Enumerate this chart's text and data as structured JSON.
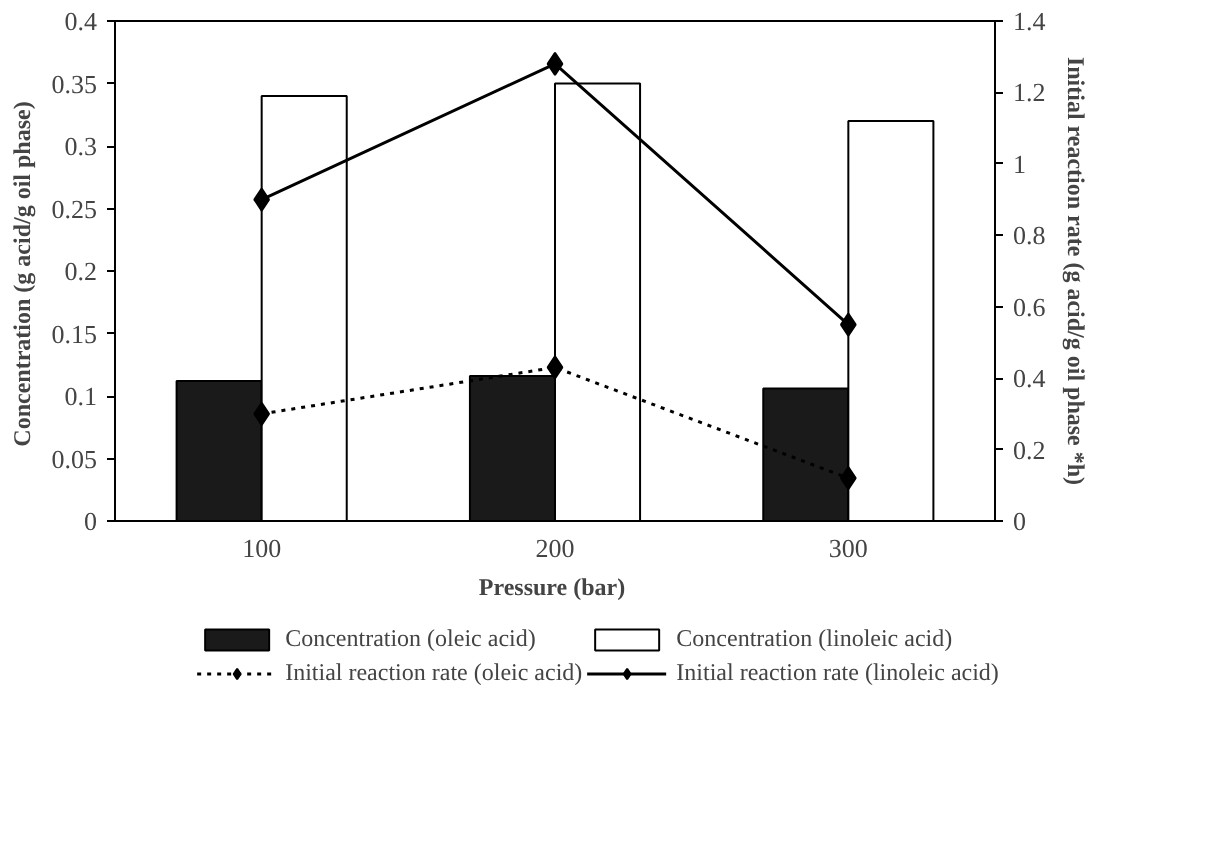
{
  "chart_data": {
    "type": "bar",
    "xlabel": "Pressure  (bar)",
    "ylabel": "Concentration  (g acid/g oil phase)",
    "y2label": "Initial reaction rate (g acid/g oil phase *h)",
    "categories": [
      "100",
      "200",
      "300"
    ],
    "series": [
      {
        "name": "Concentration (oleic acid)",
        "color": "#1a1a1a",
        "values": [
          0.112,
          0.116,
          0.106
        ]
      },
      {
        "name": "Concentration (linoleic acid)",
        "color": "#ffffff",
        "values": [
          0.34,
          0.35,
          0.32
        ]
      },
      {
        "name": "Initial reaction rate (oleic acid)",
        "type": "line",
        "axis": "y2",
        "color": "#000000",
        "line_style": "dotted",
        "marker": "diamond",
        "values": [
          0.3,
          0.43,
          0.12
        ]
      },
      {
        "name": "Initial reaction rate (linoleic acid)",
        "type": "line",
        "axis": "y2",
        "color": "#000000",
        "line_style": "solid",
        "marker": "diamond",
        "values": [
          0.9,
          1.28,
          0.55
        ]
      }
    ],
    "ylim": [
      0,
      0.4
    ],
    "yticks": [
      0,
      0.05,
      0.1,
      0.15,
      0.2,
      0.25,
      0.3,
      0.35,
      0.4
    ],
    "y2lim": [
      0,
      1.4
    ],
    "y2ticks": [
      0,
      0.2,
      0.4,
      0.6,
      0.8,
      1,
      1.2,
      1.4
    ],
    "legend": "bottom"
  }
}
